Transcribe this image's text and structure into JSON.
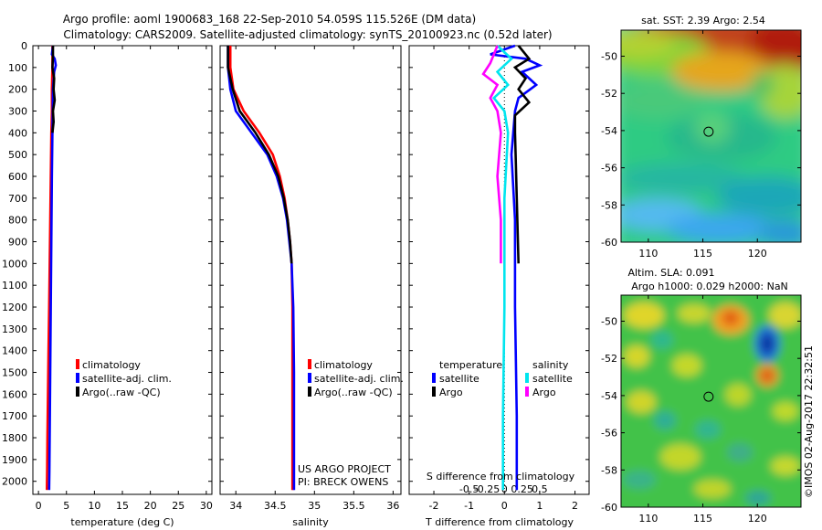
{
  "header": {
    "line1": "Argo profile: aoml 1900683_168 22-Sep-2010 54.059S 115.526E (DM data)",
    "line2": "Climatology: CARS2009. Satellite-adjusted climatology: synTS_20100923.nc (0.52d later)"
  },
  "footer": {
    "project": "US ARGO PROJECT",
    "pi": "PI: BRECK OWENS",
    "stamp": "©IMOS 02-Aug-2017 22:32:51"
  },
  "colors": {
    "climatology": "#ff0000",
    "satellite": "#0000ff",
    "argo": "#000000",
    "sal_satellite": "#00e5ee",
    "sal_argo": "#ff00ff"
  },
  "chart_data": [
    {
      "type": "line",
      "id": "temperature",
      "xlabel": "temperature (deg C)",
      "ylabel": "",
      "xlim": [
        -1,
        31
      ],
      "ylim": [
        2060,
        0
      ],
      "xticks": [
        0,
        5,
        10,
        15,
        20,
        25,
        30
      ],
      "yticks": [
        0,
        100,
        200,
        300,
        400,
        500,
        600,
        700,
        800,
        900,
        1000,
        1100,
        1200,
        1300,
        1400,
        1500,
        1600,
        1700,
        1800,
        1900,
        2000
      ],
      "legend": [
        "climatology",
        "satellite-adj. clim.",
        "Argo(..raw -QC)"
      ],
      "series": [
        {
          "name": "climatology",
          "color": "#ff0000",
          "x": [
            2.5,
            2.5,
            2.4,
            2.4,
            2.3,
            2.2,
            2.1,
            2.0,
            1.9,
            1.8,
            1.7,
            1.6,
            1.55,
            1.5
          ],
          "y": [
            0,
            100,
            200,
            300,
            400,
            600,
            800,
            1000,
            1200,
            1400,
            1600,
            1800,
            1950,
            2040
          ]
        },
        {
          "name": "satellite-adj. clim.",
          "color": "#0000ff",
          "x": [
            2.6,
            2.4,
            2.9,
            3.1,
            2.8,
            2.6,
            2.5,
            2.4,
            2.3,
            2.2,
            2.1,
            2.0,
            1.95,
            1.9
          ],
          "y": [
            0,
            40,
            60,
            90,
            120,
            200,
            400,
            600,
            900,
            1200,
            1500,
            1800,
            1950,
            2040
          ]
        },
        {
          "name": "Argo(..raw -QC)",
          "color": "#000000",
          "x": [
            2.6,
            2.6,
            2.5,
            2.8,
            2.7,
            2.9,
            2.6,
            2.7,
            2.5
          ],
          "y": [
            0,
            50,
            100,
            150,
            200,
            250,
            300,
            350,
            400
          ]
        }
      ]
    },
    {
      "type": "line",
      "id": "salinity",
      "xlabel": "salinity",
      "ylabel": "",
      "xlim": [
        33.8,
        36.1
      ],
      "ylim": [
        2060,
        0
      ],
      "xticks": [
        34,
        34.5,
        35,
        35.5,
        36
      ],
      "legend": [
        "climatology",
        "satellite-adj. clim.",
        "Argo(..raw -QC)"
      ],
      "series": [
        {
          "name": "climatology",
          "color": "#ff0000",
          "x": [
            33.93,
            33.93,
            33.97,
            34.1,
            34.3,
            34.47,
            34.56,
            34.62,
            34.66,
            34.69,
            34.71,
            34.72,
            34.72,
            34.72
          ],
          "y": [
            0,
            100,
            200,
            300,
            400,
            500,
            600,
            700,
            800,
            900,
            1000,
            1200,
            1500,
            2040
          ]
        },
        {
          "name": "satellite-adj. clim.",
          "color": "#0000ff",
          "x": [
            33.9,
            33.9,
            33.93,
            34.0,
            34.2,
            34.4,
            34.52,
            34.6,
            34.65,
            34.68,
            34.71,
            34.73,
            34.74,
            34.74
          ],
          "y": [
            0,
            100,
            200,
            300,
            400,
            500,
            600,
            700,
            800,
            900,
            1000,
            1200,
            1500,
            2040
          ]
        },
        {
          "name": "Argo(..raw -QC)",
          "color": "#000000",
          "x": [
            33.9,
            33.9,
            33.96,
            34.05,
            34.25,
            34.42,
            34.54,
            34.61,
            34.66,
            34.69,
            34.71
          ],
          "y": [
            0,
            100,
            200,
            300,
            400,
            500,
            600,
            700,
            800,
            900,
            1000
          ]
        }
      ]
    },
    {
      "type": "line",
      "id": "differences",
      "xlabel": "T difference from climatology",
      "xlabel2": "S difference from climatology",
      "xlim": [
        -2.7,
        2.4
      ],
      "ylim": [
        2060,
        0
      ],
      "xticks": [
        -2,
        -1,
        0,
        1,
        2
      ],
      "xticks_salinity": [
        -0.5,
        -0.25,
        0,
        0.25,
        0.5
      ],
      "xticks_salinity_labels": [
        "-0.5",
        "-0.25",
        "0",
        "0.25",
        "0.5"
      ],
      "legend_groups": {
        "temperature": [
          "satellite",
          "Argo"
        ],
        "salinity": [
          "satellite",
          "Argo"
        ]
      },
      "legend_titles": {
        "temperature": "temperature",
        "salinity": "salinity"
      },
      "series": [
        {
          "name": "satellite (temperature)",
          "color": "#0000ff",
          "x": [
            0.3,
            -0.4,
            0.6,
            1.0,
            0.5,
            0.9,
            0.4,
            0.3,
            0.2,
            0.3,
            0.3,
            0.35,
            0.35
          ],
          "y": [
            0,
            40,
            60,
            90,
            120,
            180,
            240,
            300,
            500,
            800,
            1200,
            1700,
            2040
          ]
        },
        {
          "name": "Argo (temperature)",
          "color": "#000000",
          "x": [
            0.4,
            0.7,
            0.3,
            0.6,
            0.4,
            0.7,
            0.3,
            0.3,
            0.35,
            0.4
          ],
          "y": [
            0,
            60,
            100,
            150,
            200,
            260,
            320,
            400,
            700,
            1000
          ]
        },
        {
          "name": "satellite (salinity)",
          "color": "#00e5ee",
          "x": [
            -0.1,
            0.1,
            -0.1,
            0.05,
            -0.15,
            0.0,
            0.05,
            0.0,
            0.0,
            -0.02,
            -0.02
          ],
          "y": [
            0,
            60,
            120,
            180,
            240,
            300,
            400,
            700,
            1200,
            1700,
            2040
          ]
        },
        {
          "name": "Argo (salinity)",
          "color": "#ff00ff",
          "x": [
            -0.1,
            -0.2,
            -0.3,
            -0.1,
            -0.2,
            -0.1,
            -0.05,
            -0.1,
            -0.05,
            -0.05
          ],
          "y": [
            0,
            80,
            130,
            180,
            240,
            300,
            400,
            600,
            800,
            1000
          ]
        }
      ]
    },
    {
      "type": "heatmap",
      "id": "sst-map",
      "title": "sat. SST: 2.39 Argo: 2.54",
      "xlim": [
        107.5,
        124
      ],
      "ylim": [
        -60,
        -48.6
      ],
      "xticks": [
        110,
        115,
        120
      ],
      "yticks": [
        -50,
        -52,
        -54,
        -56,
        -58,
        -60
      ],
      "marker": {
        "lon": 115.526,
        "lat": -54.059
      }
    },
    {
      "type": "heatmap",
      "id": "sla-map",
      "title": "Altim. SLA: 0.091",
      "subtitle": "Argo h1000: 0.029 h2000: NaN",
      "xlim": [
        107.5,
        124
      ],
      "ylim": [
        -60,
        -48.6
      ],
      "xticks": [
        110,
        115,
        120
      ],
      "yticks": [
        -50,
        -52,
        -54,
        -56,
        -58,
        -60
      ],
      "marker": {
        "lon": 115.526,
        "lat": -54.059
      }
    }
  ]
}
